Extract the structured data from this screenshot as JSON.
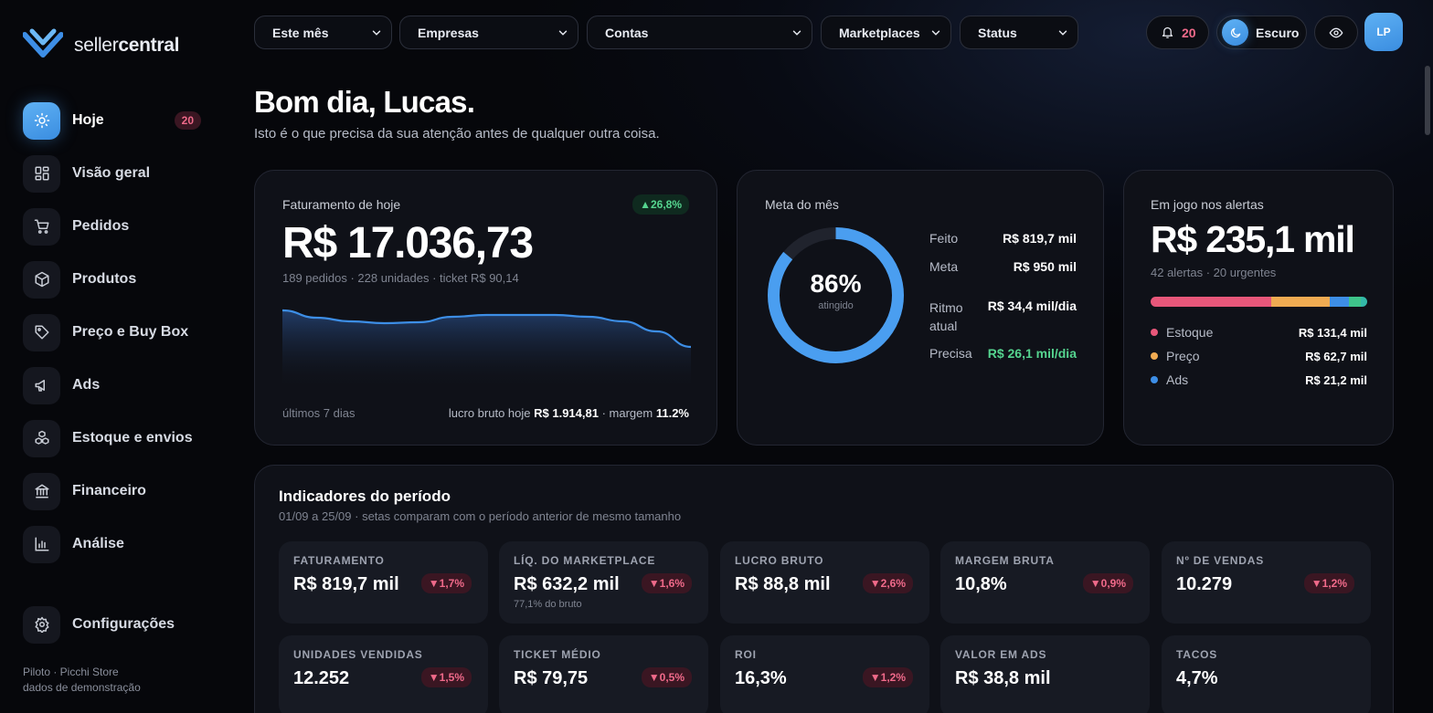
{
  "brand": {
    "prefix": "seller",
    "suffix": "central"
  },
  "sidebar": {
    "items": [
      {
        "label": "Hoje",
        "icon": "sun-icon",
        "badge": "20",
        "active": true
      },
      {
        "label": "Visão geral",
        "icon": "grid-icon"
      },
      {
        "label": "Pedidos",
        "icon": "cart-icon"
      },
      {
        "label": "Produtos",
        "icon": "box-icon"
      },
      {
        "label": "Preço e Buy Box",
        "icon": "tag-icon"
      },
      {
        "label": "Ads",
        "icon": "megaphone-icon"
      },
      {
        "label": "Estoque e envios",
        "icon": "boxes-icon"
      },
      {
        "label": "Financeiro",
        "icon": "bank-icon"
      },
      {
        "label": "Análise",
        "icon": "bar-chart-icon"
      }
    ],
    "config": {
      "label": "Configurações",
      "icon": "gear-icon"
    },
    "footer": {
      "line1": "Piloto · Picchi Store",
      "line2": "dados de demonstração"
    }
  },
  "topbar": {
    "filters": [
      {
        "value": "Este mês"
      },
      {
        "value": "Empresas"
      },
      {
        "value": "Contas"
      },
      {
        "value": "Marketplaces"
      },
      {
        "value": "Status"
      }
    ],
    "notifications": {
      "icon": "bell-icon",
      "count": "20"
    },
    "theme": {
      "icon": "moon-icon",
      "label": "Escuro"
    },
    "privacy": {
      "icon": "eye-icon"
    },
    "avatar": "LP"
  },
  "greeting": {
    "title": "Bom dia, Lucas.",
    "subtitle": "Isto é o que precisa da sua atenção antes de qualquer outra coisa."
  },
  "revenue_card": {
    "title": "Faturamento de hoje",
    "change": "▲26,8%",
    "value": "R$ 17.036,73",
    "details": "189 pedidos · 228 unidades · ticket R$ 90,14",
    "period": "últimos 7 dias",
    "profit_prefix": "lucro bruto hoje",
    "profit_value": "R$ 1.914,81",
    "margin_prefix": "· margem",
    "margin_value": "11.2%"
  },
  "goal_card": {
    "title": "Meta do mês",
    "percent": "86%",
    "percent_value": 86,
    "percent_caption": "atingido",
    "rows": [
      {
        "label": "Feito",
        "value": "R$ 819,7 mil"
      },
      {
        "label": "Meta",
        "value": "R$ 950 mil"
      },
      {
        "label": "Ritmo atual",
        "value": "R$ 34,4 mil/dia"
      },
      {
        "label": "Precisa",
        "value": "R$ 26,1 mil/dia"
      }
    ]
  },
  "alerts_card": {
    "title": "Em jogo nos alertas",
    "value": "R$ 235,1 mil",
    "details": "42 alertas · 20 urgentes",
    "segments": [
      {
        "label": "Estoque",
        "value": "R$ 131,4 mil",
        "amount": 131.4,
        "color": "#e8577a"
      },
      {
        "label": "Preço",
        "value": "R$ 62,7 mil",
        "amount": 62.7,
        "color": "#f0ab52"
      },
      {
        "label": "Ads",
        "value": "R$ 21,2 mil",
        "amount": 21.2,
        "color": "#3d8ee6"
      }
    ],
    "extra_segments": [
      {
        "amount": 12.5,
        "color": "#3ec48a"
      },
      {
        "amount": 7.3,
        "color": "#33b9a8"
      }
    ]
  },
  "indicators": {
    "title": "Indicadores do período",
    "subtitle": "01/09 a 25/09 · setas comparam com o período anterior de mesmo tamanho",
    "kpis": [
      {
        "label": "FATURAMENTO",
        "value": "R$ 819,7 mil",
        "change": "▼1,7%"
      },
      {
        "label": "LÍQ. DO MARKETPLACE",
        "value": "R$ 632,2 mil",
        "change": "▼1,6%",
        "sub": "77,1% do bruto"
      },
      {
        "label": "LUCRO BRUTO",
        "value": "R$ 88,8 mil",
        "change": "▼2,6%"
      },
      {
        "label": "MARGEM BRUTA",
        "value": "10,8%",
        "change": "▼0,9%"
      },
      {
        "label": "Nº DE VENDAS",
        "value": "10.279",
        "change": "▼1,2%"
      },
      {
        "label": "UNIDADES VENDIDAS",
        "value": "12.252",
        "change": "▼1,5%"
      },
      {
        "label": "TICKET MÉDIO",
        "value": "R$ 79,75",
        "change": "▼0,5%"
      },
      {
        "label": "ROI",
        "value": "16,3%",
        "change": "▼1,2%"
      },
      {
        "label": "VALOR EM ADS",
        "value": "R$ 38,8 mil"
      },
      {
        "label": "TACOS",
        "value": "4,7%"
      }
    ]
  },
  "chart_data": {
    "type": "area",
    "title": "",
    "xlabel": "últimos 7 dias",
    "ylabel": "",
    "x": [
      1,
      2,
      3,
      4,
      5,
      6,
      7,
      8,
      9,
      10,
      11,
      12,
      13
    ],
    "values": [
      87,
      79,
      75,
      73,
      74,
      80,
      82,
      82,
      82,
      80,
      75,
      64,
      47
    ],
    "ylim": [
      0,
      100
    ],
    "grid": false,
    "color": "#3d8ee6"
  }
}
